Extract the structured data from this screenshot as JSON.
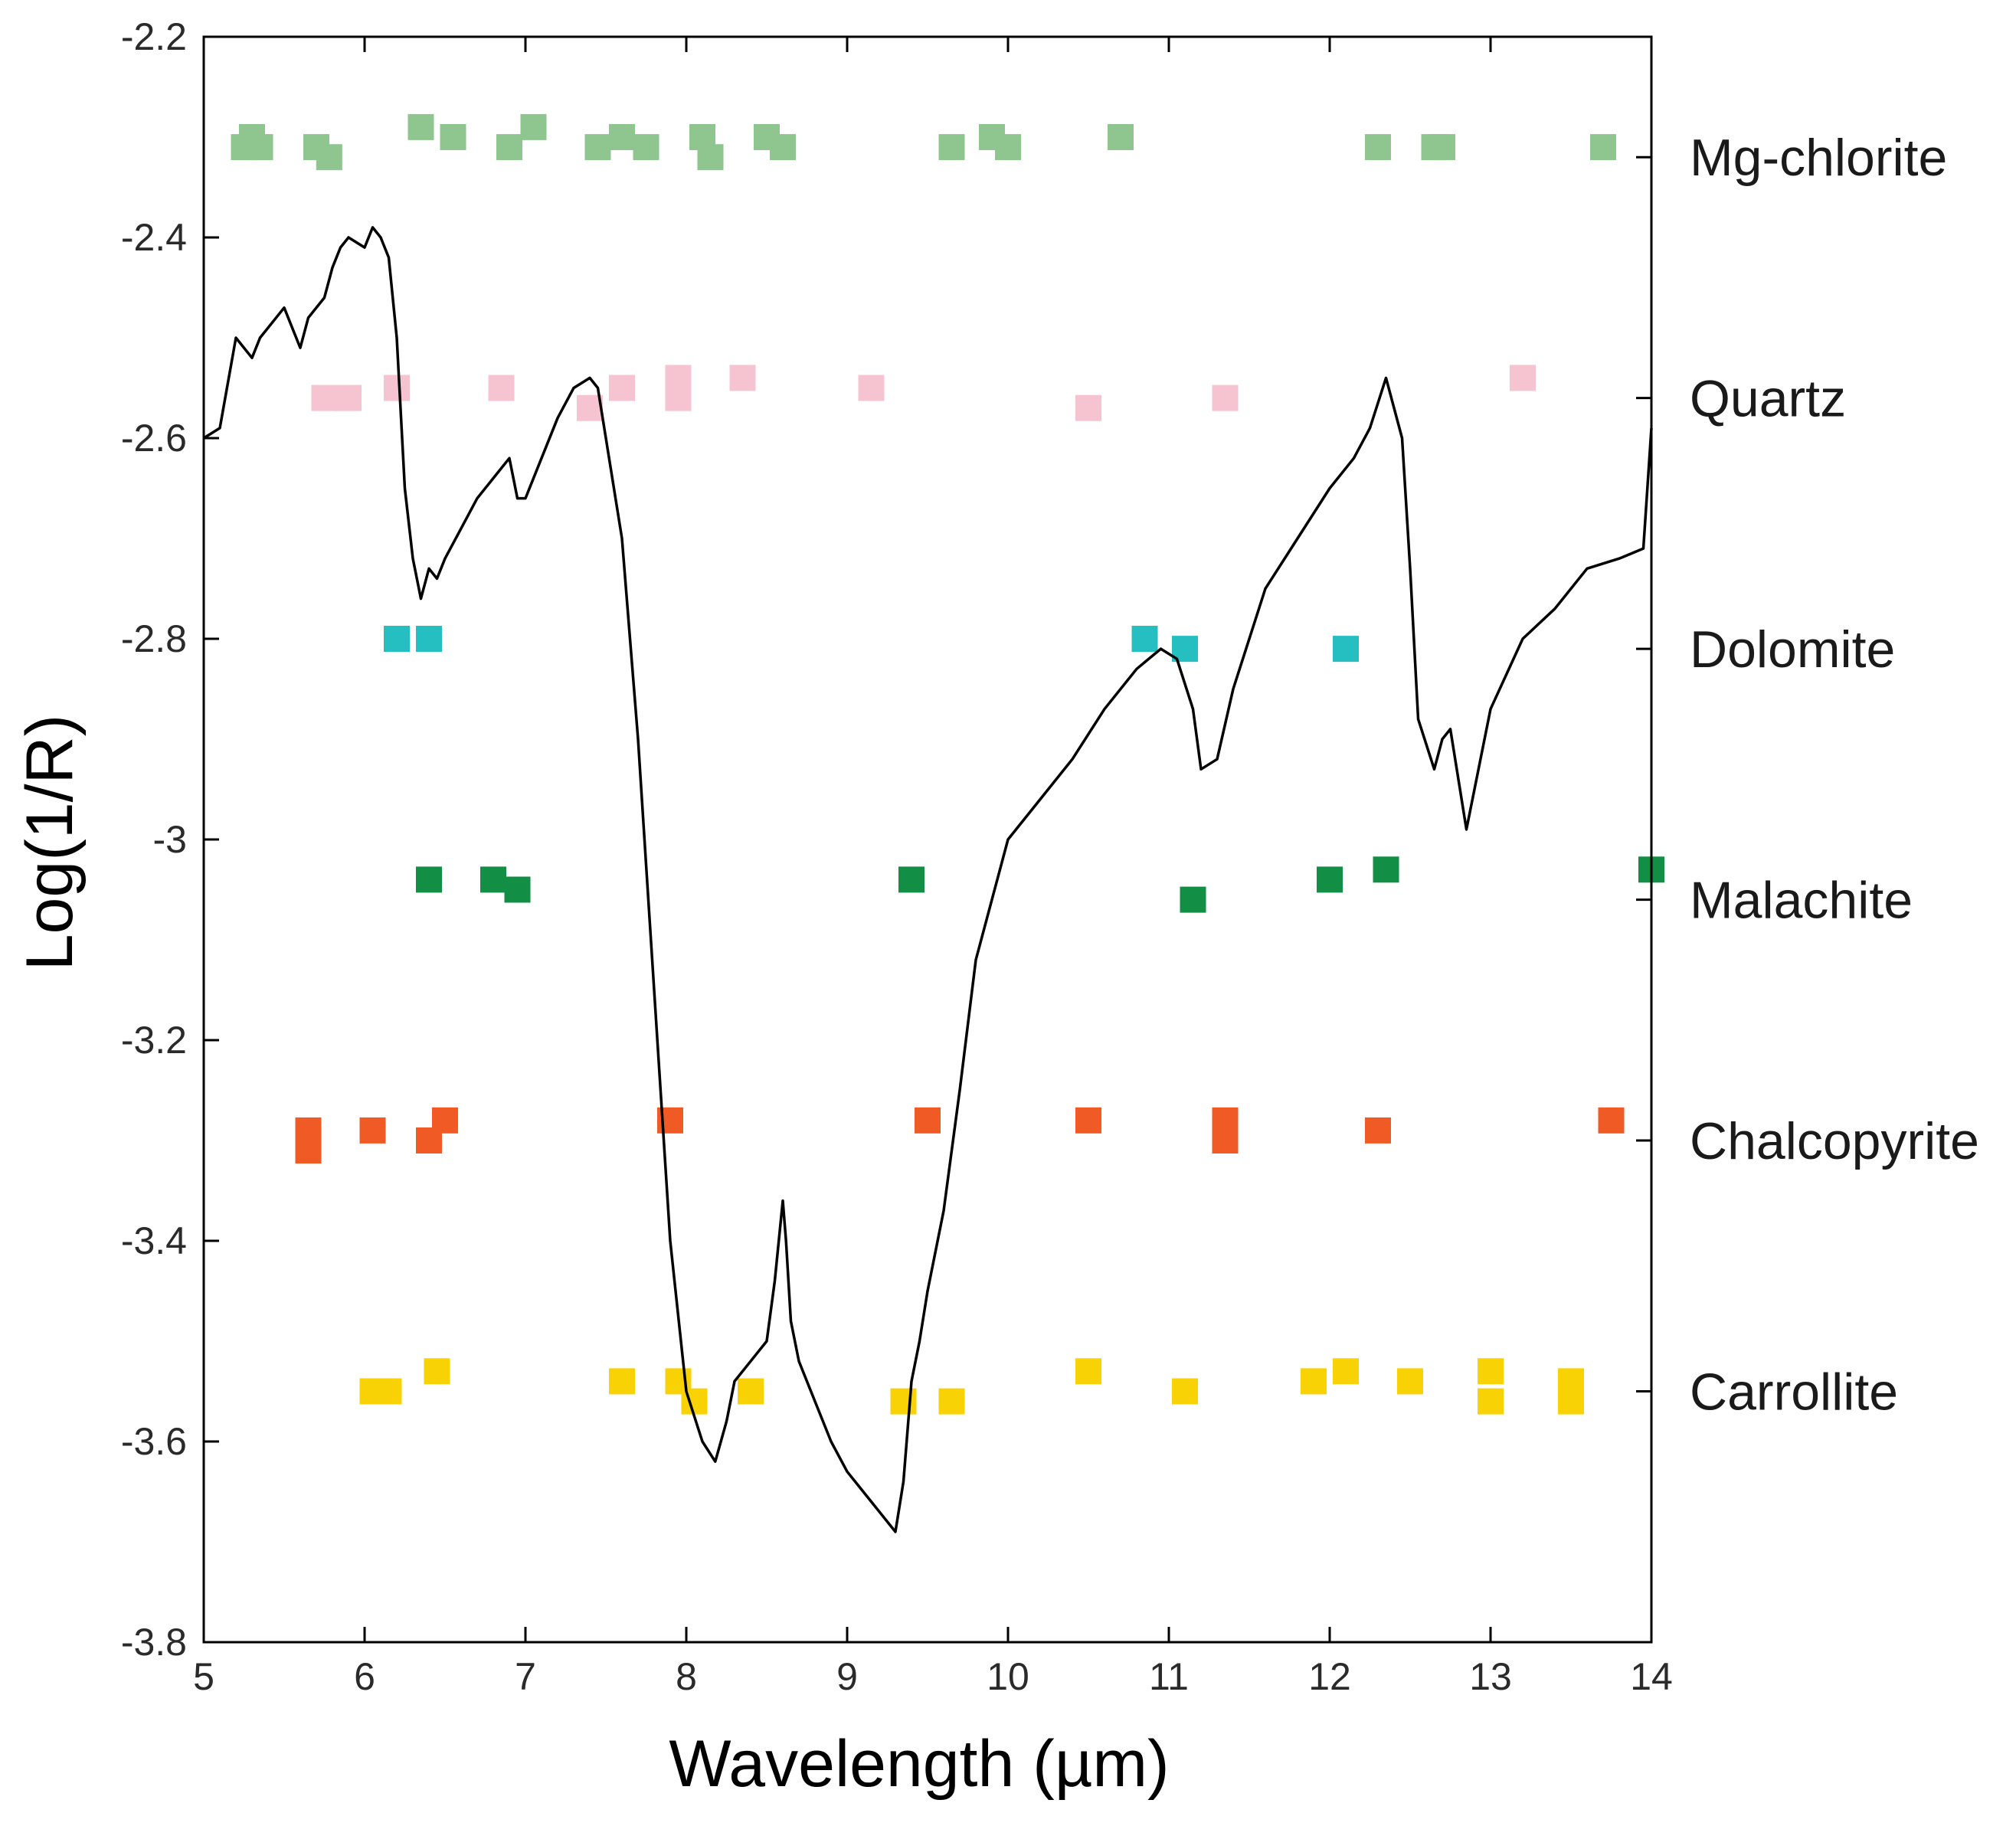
{
  "chart_data": {
    "type": "scatter+line",
    "title": "",
    "xlabel": "Wavelength (µm)",
    "ylabel": "Log(1/R)",
    "xlim": [
      5,
      14
    ],
    "ylim": [
      -3.8,
      -2.2
    ],
    "grid": false,
    "x_ticks": [
      5,
      6,
      7,
      8,
      9,
      10,
      11,
      12,
      13,
      14
    ],
    "y_ticks": [
      -2.2,
      -2.4,
      -2.6,
      -2.8,
      -3,
      -3.2,
      -3.4,
      -3.6,
      -3.8
    ],
    "y_tick_labels": [
      "-2.2",
      "-2.4",
      "-2.6",
      "-2.8",
      "-3",
      "-3.2",
      "-3.4",
      "-3.6",
      "-3.8"
    ],
    "spectrum": {
      "name": "sample spectrum",
      "color": "#000000",
      "x": [
        5.0,
        5.1,
        5.2,
        5.3,
        5.35,
        5.45,
        5.5,
        5.6,
        5.65,
        5.75,
        5.8,
        5.85,
        5.9,
        6.0,
        6.05,
        6.1,
        6.15,
        6.2,
        6.25,
        6.3,
        6.35,
        6.4,
        6.45,
        6.5,
        6.6,
        6.7,
        6.8,
        6.9,
        6.95,
        7.0,
        7.1,
        7.2,
        7.3,
        7.4,
        7.45,
        7.5,
        7.6,
        7.7,
        7.8,
        7.9,
        8.0,
        8.1,
        8.18,
        8.25,
        8.3,
        8.4,
        8.5,
        8.55,
        8.6,
        8.62,
        8.65,
        8.7,
        8.8,
        8.9,
        9.0,
        9.1,
        9.2,
        9.3,
        9.35,
        9.4,
        9.45,
        9.5,
        9.6,
        9.7,
        9.8,
        9.9,
        10.0,
        10.2,
        10.4,
        10.6,
        10.8,
        10.95,
        11.05,
        11.15,
        11.2,
        11.3,
        11.4,
        11.6,
        11.8,
        12.0,
        12.15,
        12.25,
        12.35,
        12.45,
        12.5,
        12.55,
        12.65,
        12.7,
        12.75,
        12.85,
        13.0,
        13.2,
        13.4,
        13.6,
        13.8,
        13.95,
        14.0
      ],
      "y": [
        -2.6,
        -2.59,
        -2.5,
        -2.52,
        -2.5,
        -2.48,
        -2.47,
        -2.51,
        -2.48,
        -2.46,
        -2.43,
        -2.41,
        -2.4,
        -2.41,
        -2.39,
        -2.4,
        -2.42,
        -2.5,
        -2.65,
        -2.72,
        -2.76,
        -2.73,
        -2.74,
        -2.72,
        -2.69,
        -2.66,
        -2.64,
        -2.62,
        -2.66,
        -2.66,
        -2.62,
        -2.58,
        -2.55,
        -2.54,
        -2.55,
        -2.6,
        -2.7,
        -2.9,
        -3.15,
        -3.4,
        -3.55,
        -3.6,
        -3.62,
        -3.58,
        -3.54,
        -3.52,
        -3.5,
        -3.44,
        -3.36,
        -3.4,
        -3.48,
        -3.52,
        -3.56,
        -3.6,
        -3.63,
        -3.65,
        -3.67,
        -3.69,
        -3.64,
        -3.54,
        -3.5,
        -3.45,
        -3.37,
        -3.25,
        -3.12,
        -3.06,
        -3.0,
        -2.96,
        -2.92,
        -2.87,
        -2.83,
        -2.81,
        -2.82,
        -2.87,
        -2.93,
        -2.92,
        -2.85,
        -2.75,
        -2.7,
        -2.65,
        -2.62,
        -2.59,
        -2.54,
        -2.6,
        -2.73,
        -2.88,
        -2.93,
        -2.9,
        -2.89,
        -2.99,
        -2.87,
        -2.8,
        -2.77,
        -2.73,
        -2.72,
        -2.71,
        -2.59
      ]
    },
    "series": [
      {
        "name": "Mg-chlorite",
        "color": "#8fc58f",
        "label_y": -2.32,
        "points": [
          [
            5.25,
            -2.31
          ],
          [
            5.3,
            -2.3
          ],
          [
            5.35,
            -2.31
          ],
          [
            5.7,
            -2.31
          ],
          [
            5.78,
            -2.32
          ],
          [
            6.35,
            -2.29
          ],
          [
            6.55,
            -2.3
          ],
          [
            6.9,
            -2.31
          ],
          [
            7.05,
            -2.29
          ],
          [
            7.45,
            -2.31
          ],
          [
            7.6,
            -2.3
          ],
          [
            7.75,
            -2.31
          ],
          [
            8.1,
            -2.3
          ],
          [
            8.15,
            -2.32
          ],
          [
            8.5,
            -2.3
          ],
          [
            8.6,
            -2.31
          ],
          [
            9.65,
            -2.31
          ],
          [
            9.9,
            -2.3
          ],
          [
            10.0,
            -2.31
          ],
          [
            10.7,
            -2.3
          ],
          [
            12.3,
            -2.31
          ],
          [
            12.65,
            -2.31
          ],
          [
            12.7,
            -2.31
          ],
          [
            13.7,
            -2.31
          ]
        ]
      },
      {
        "name": "Quartz",
        "color": "#f6c4d0",
        "label_y": -2.56,
        "points": [
          [
            5.75,
            -2.56
          ],
          [
            5.9,
            -2.56
          ],
          [
            6.2,
            -2.55
          ],
          [
            6.85,
            -2.55
          ],
          [
            7.4,
            -2.57
          ],
          [
            7.6,
            -2.55
          ],
          [
            7.95,
            -2.54
          ],
          [
            7.95,
            -2.56
          ],
          [
            8.35,
            -2.54
          ],
          [
            9.15,
            -2.55
          ],
          [
            10.5,
            -2.57
          ],
          [
            11.35,
            -2.56
          ],
          [
            13.2,
            -2.54
          ]
        ]
      },
      {
        "name": "Dolomite",
        "color": "#26bfc1",
        "label_y": -2.81,
        "points": [
          [
            6.2,
            -2.8
          ],
          [
            6.4,
            -2.8
          ],
          [
            10.85,
            -2.8
          ],
          [
            11.1,
            -2.81
          ],
          [
            12.1,
            -2.81
          ]
        ]
      },
      {
        "name": "Malachite",
        "color": "#128f44",
        "label_y": -3.06,
        "points": [
          [
            6.4,
            -3.04
          ],
          [
            6.8,
            -3.04
          ],
          [
            6.95,
            -3.05
          ],
          [
            9.4,
            -3.04
          ],
          [
            11.15,
            -3.06
          ],
          [
            12.0,
            -3.04
          ],
          [
            12.35,
            -3.03
          ],
          [
            14.0,
            -3.03
          ]
        ]
      },
      {
        "name": "Chalcopyrite",
        "color": "#f05a24",
        "label_y": -3.3,
        "points": [
          [
            5.65,
            -3.29
          ],
          [
            5.65,
            -3.31
          ],
          [
            6.05,
            -3.29
          ],
          [
            6.4,
            -3.3
          ],
          [
            6.5,
            -3.28
          ],
          [
            7.9,
            -3.28
          ],
          [
            9.5,
            -3.28
          ],
          [
            10.5,
            -3.28
          ],
          [
            11.35,
            -3.28
          ],
          [
            11.35,
            -3.3
          ],
          [
            12.3,
            -3.29
          ],
          [
            13.75,
            -3.28
          ]
        ]
      },
      {
        "name": "Carrollite",
        "color": "#f8d205",
        "label_y": -3.55,
        "points": [
          [
            6.05,
            -3.55
          ],
          [
            6.15,
            -3.55
          ],
          [
            6.45,
            -3.53
          ],
          [
            7.6,
            -3.54
          ],
          [
            7.95,
            -3.54
          ],
          [
            8.05,
            -3.56
          ],
          [
            8.4,
            -3.55
          ],
          [
            9.35,
            -3.56
          ],
          [
            9.65,
            -3.56
          ],
          [
            10.5,
            -3.53
          ],
          [
            11.1,
            -3.55
          ],
          [
            11.9,
            -3.54
          ],
          [
            12.1,
            -3.53
          ],
          [
            12.5,
            -3.54
          ],
          [
            13.0,
            -3.53
          ],
          [
            13.0,
            -3.56
          ],
          [
            13.5,
            -3.54
          ],
          [
            13.5,
            -3.56
          ]
        ]
      }
    ]
  }
}
